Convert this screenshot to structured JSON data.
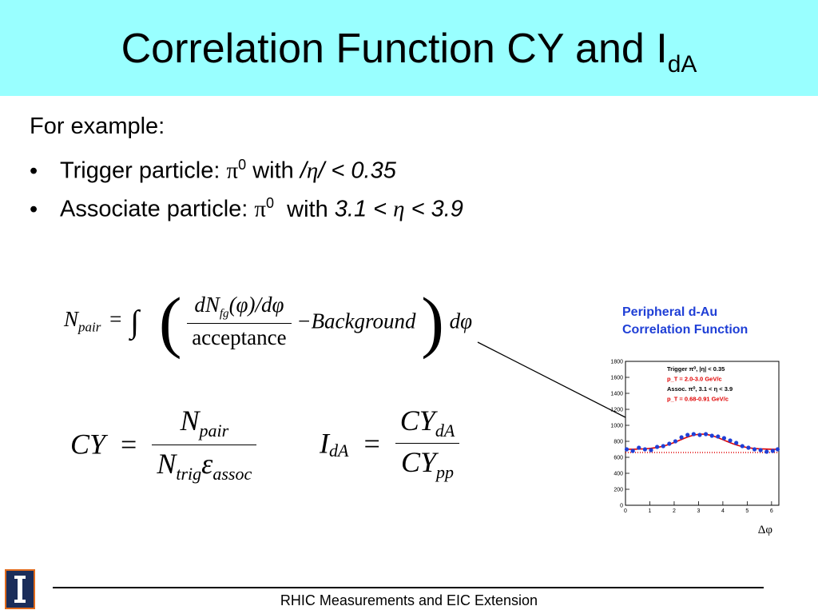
{
  "slide": {
    "title_main": "Correlation Function CY and I",
    "title_sub": "dA",
    "intro": "For example:",
    "bullets": [
      {
        "label": "Trigger particle:",
        "particle": "π",
        "sup": "0",
        "with": "with",
        "cond_a": "/",
        "eta": "η",
        "cond_b": "/ < 0.35"
      },
      {
        "label": "Associate particle:",
        "particle": "π",
        "sup": "0",
        "with": "with",
        "cond_a": "3.1 < ",
        "eta": "η",
        "cond_b": " < 3.9"
      }
    ],
    "footer": "RHIC Measurements and EIC Extension"
  },
  "equations": {
    "npair_lhs": "N",
    "npair_lhs_sub": "pair",
    "dN": "dN",
    "dN_sub": "fg",
    "dN_rest": "(φ)/dφ",
    "acceptance": "acceptance",
    "minus_bg": "−Background",
    "dphi": "dφ",
    "cy": "CY",
    "eq_sign": "=",
    "cy_num": "N",
    "cy_num_sub": "pair",
    "cy_den": "N",
    "cy_den_sub1": "trig",
    "epsilon": "ε",
    "cy_den_sub2": "assoc",
    "ida": "I",
    "ida_sub": "dA",
    "ida_num": "CY",
    "ida_num_sub": "dA",
    "ida_den": "CY",
    "ida_den_sub": "pp"
  },
  "chart_data": {
    "type": "scatter",
    "title": "Peripheral d-Au Correlation Function",
    "xlabel": "Δφ",
    "ylabel": "",
    "xlim": [
      0,
      6.3
    ],
    "ylim": [
      0,
      1800
    ],
    "x_ticks": [
      "0",
      "1",
      "2",
      "3",
      "4",
      "5",
      "6"
    ],
    "y_ticks": [
      "0",
      "200",
      "400",
      "600",
      "800",
      "1000",
      "1200",
      "1400",
      "1600",
      "1800"
    ],
    "legend": [
      {
        "text": "Trigger  π⁰, |η| < 0.35",
        "color": "#000000"
      },
      {
        "text": "p_T = 2.0-3.0 GeV/c",
        "color": "#e00000"
      },
      {
        "text": "Assoc.  π⁰, 3.1 < η < 3.9",
        "color": "#000000"
      },
      {
        "text": "p_T = 0.68-0.91 GeV/c",
        "color": "#e00000"
      }
    ],
    "series": [
      {
        "values_x": [
          0.05,
          0.3,
          0.55,
          0.8,
          1.05,
          1.3,
          1.55,
          1.8,
          2.05,
          2.3,
          2.55,
          2.8,
          3.05,
          3.3,
          3.55,
          3.8,
          4.05,
          4.3,
          4.55,
          4.8,
          5.05,
          5.3,
          5.55,
          5.8,
          6.05,
          6.25
        ],
        "values_y": [
          700,
          680,
          720,
          700,
          690,
          730,
          740,
          770,
          800,
          850,
          880,
          890,
          880,
          890,
          870,
          860,
          840,
          810,
          780,
          740,
          720,
          700,
          690,
          670,
          680,
          700
        ],
        "color": "#1f3fd6"
      }
    ],
    "fit_color": "#e00000",
    "background_level": 660
  }
}
